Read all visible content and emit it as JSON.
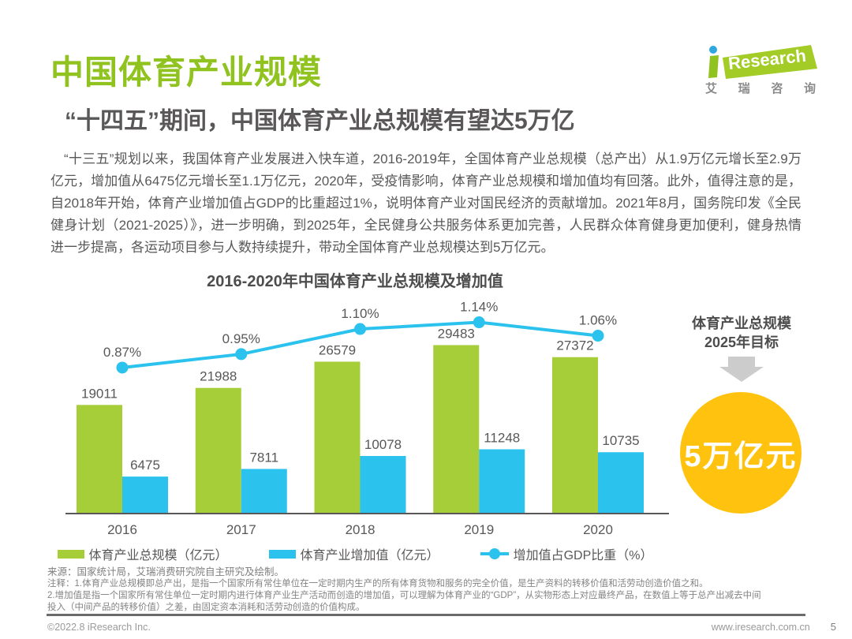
{
  "page": {
    "title": "中国体育产业规模",
    "subtitle": "“十四五”期间，中国体育产业总规模有望达5万亿",
    "paragraph": "“十三五”规划以来，我国体育产业发展进入快车道，2016-2019年，全国体育产业总规模（总产出）从1.9万亿元增长至2.9万亿元，增加值从6475亿元增长至1.1万亿元，2020年，受疫情影响，体育产业总规模和增加值均有回落。此外，值得注意的是，自2018年开始，体育产业增加值占GDP的比重超过1%，说明体育产业对国民经济的贡献增加。2021年8月，国务院印发《全民健身计划（2021-2025）》，进一步明确，到2025年，全民健身公共服务体系更加完善，人民群众体育健身更加便利，健身热情进一步提高，各运动项目参与人数持续提升，带动全国体育产业总规模达到5万亿元。"
  },
  "logo": {
    "brand_i": "i",
    "brand": "Research",
    "cn_chars": "艾瑞咨询",
    "cn_spaced": [
      "艾",
      "瑞",
      "咨",
      "询"
    ]
  },
  "chart_data": {
    "type": "combo-bar-line",
    "title": "2016-2020年中国体育产业总规模及增加值",
    "categories": [
      "2016",
      "2017",
      "2018",
      "2019",
      "2020"
    ],
    "series": [
      {
        "name": "体育产业总规模（亿元）",
        "type": "bar",
        "color": "#A6CE39",
        "values": [
          19011,
          21988,
          26579,
          29483,
          27372
        ]
      },
      {
        "name": "体育产业增加值（亿元）",
        "type": "bar",
        "color": "#2BC2EE",
        "values": [
          6475,
          7811,
          10078,
          11248,
          10735
        ]
      },
      {
        "name": "增加值占GDP比重（%）",
        "type": "line",
        "color": "#2BC2EE",
        "values": [
          0.87,
          0.95,
          1.1,
          1.14,
          1.06
        ],
        "labels": [
          "0.87%",
          "0.95%",
          "1.10%",
          "1.14%",
          "1.06%"
        ]
      }
    ],
    "y1lim": [
      0,
      37000
    ],
    "y2lim": [
      0,
      1.26
    ],
    "grid": false,
    "legend_position": "bottom",
    "axis_color": "#595757"
  },
  "target": {
    "title_line1": "体育产业总规模",
    "title_line2": "2025年目标",
    "value": "5万亿元",
    "circle_color": "#FFC20E",
    "arrow_color": "#CCCCCC"
  },
  "notes": {
    "source": "来源：国家统计局，艾瑞消费研究院自主研究及绘制。",
    "line1": "注释：1.体育产业总规模即总产出，是指一个国家所有常住单位在一定时期内生产的所有体育货物和服务的完全价值，是生产资料的转移价值和活劳动创造价值之和。",
    "line2": "2.增加值是指一个国家所有常住单位一定时期内进行体育产业生产活动而创造的增加值，可以理解为体育产业的“GDP”，从实物形态上对应最终产品，在数值上等于总产出减去中间",
    "line3": "投入（中间产品的转移价值）之差，由固定资本消耗和活劳动创造的价值构成。"
  },
  "footer": {
    "copyright": "©2022.8 iResearch Inc.",
    "website": "www.iresearch.com.cn",
    "page_number": "5"
  },
  "colors": {
    "title_green": "#90C320",
    "bar_green": "#A6CE39",
    "cyan": "#2BC2EE",
    "yellow": "#FFC20E",
    "text_dark": "#595757",
    "logo_blue": "#2EA7E0"
  }
}
